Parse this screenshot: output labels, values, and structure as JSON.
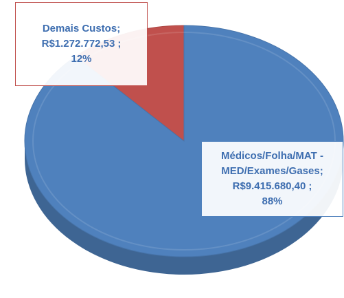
{
  "chart_data": {
    "type": "pie",
    "categories": [
      "Demais Custos",
      "Médicos/Folha/MAT - MED/Exames/Gases"
    ],
    "values": [
      1272772.53,
      9415680.4
    ],
    "value_labels": [
      "R$1.272.772,53",
      "R$9.415.680,40"
    ],
    "percents": [
      12,
      88
    ],
    "percent_labels": [
      "12%",
      "88%"
    ],
    "label_separator": ";",
    "colors": [
      "#c0504d",
      "#4f81bd"
    ]
  }
}
